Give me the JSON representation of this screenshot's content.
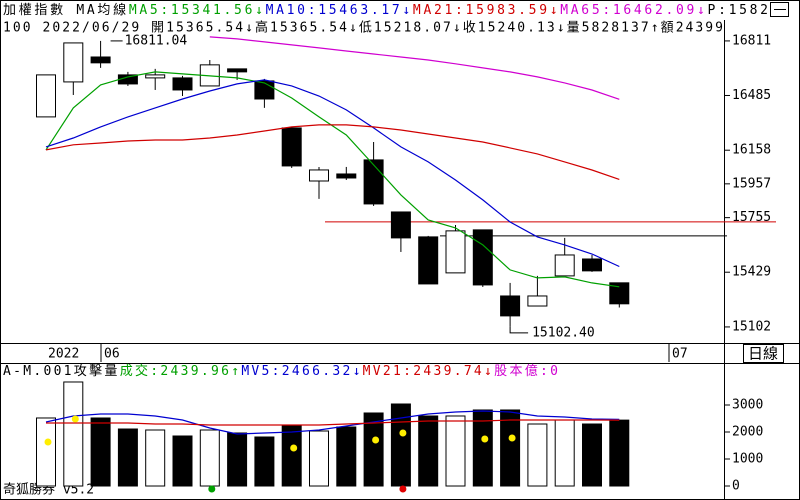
{
  "chart_data": [
    {
      "type": "candlestick",
      "title": "加權指數 MA均線",
      "p_label": "P:1582",
      "info": "100 2022/06/29 開15365.54↓高15365.54↓低15218.07↓收15240.13↓量5828137↑額24399",
      "x_labels": [
        "2022",
        "06",
        "07"
      ],
      "open": [
        16357,
        16566,
        16715,
        16608,
        16590,
        16590,
        16542,
        16644,
        16572,
        16291,
        15974,
        16016,
        16100,
        15789,
        15640,
        15425,
        15682,
        15287,
        15227,
        15407,
        15508,
        15365.54
      ],
      "high": [
        16608,
        16799,
        16811.04,
        16626,
        16644,
        16602,
        16697,
        16644,
        16584,
        16291,
        16058,
        16058,
        16207,
        15789,
        15646,
        15711,
        15682,
        15365,
        15407,
        15634,
        15532,
        15365.54
      ],
      "low": [
        16357,
        16488,
        16650,
        16542,
        16518,
        16482,
        16542,
        16578,
        16411,
        16052,
        15867,
        15980,
        15825,
        15550,
        15359,
        15425,
        15341,
        15102.4,
        15227,
        15407,
        15431,
        15218.07
      ],
      "close": [
        16608,
        16799,
        16680,
        16554,
        16608,
        16518,
        16668,
        16626,
        16464,
        16064,
        16040,
        15992,
        15837,
        15634,
        15359,
        15676,
        15353,
        15168,
        15287,
        15532,
        15437,
        15240.13
      ],
      "up_color": "#ffffff",
      "down_color": "#000000",
      "series": [
        {
          "label": "MA5:15341.56↓",
          "color": "#00a000",
          "values": [
            16160,
            16411,
            16548,
            16596,
            16626,
            16614,
            16602,
            16590,
            16560,
            16470,
            16357,
            16249,
            16070,
            15891,
            15741,
            15694,
            15592,
            15443,
            15395,
            15401,
            15365,
            15341.56
          ]
        },
        {
          "label": "MA10:15463.17↓",
          "color": "#0000d0",
          "values": [
            16178,
            16231,
            16297,
            16357,
            16411,
            16464,
            16512,
            16554,
            16578,
            16542,
            16482,
            16399,
            16291,
            16178,
            16088,
            15980,
            15861,
            15729,
            15640,
            15592,
            15538,
            15463.17
          ]
        },
        {
          "label": "MA21:15983.59↓",
          "color": "#d00000",
          "values": [
            16160,
            16190,
            16201,
            16213,
            16219,
            16219,
            16231,
            16249,
            16273,
            16297,
            16309,
            16309,
            16297,
            16279,
            16255,
            16231,
            16207,
            16172,
            16136,
            16088,
            16040,
            15983.59
          ]
        },
        {
          "label": "MA65:16462.09↓",
          "color": "#d000d0",
          "values": [
            null,
            null,
            null,
            null,
            null,
            null,
            16835,
            16823,
            16805,
            16787,
            16769,
            16751,
            16733,
            16715,
            16697,
            16674,
            16650,
            16626,
            16596,
            16560,
            16518,
            16462.09
          ]
        }
      ],
      "annotations": [
        {
          "value": 16811.04,
          "kind": "high"
        },
        {
          "value": 15102.4,
          "label": "15102.40",
          "kind": "low"
        }
      ],
      "reference_lines": [
        {
          "value": 15730,
          "color": "#d00000"
        },
        {
          "value": 15646,
          "color": "#000000"
        }
      ],
      "ylim": [
        15006,
        16936
      ],
      "yticks": [
        16811,
        16485,
        16158,
        15957,
        15755,
        15429,
        15102
      ]
    },
    {
      "type": "volume",
      "title": "A-M.001攻擊量",
      "volume_label": {
        "text": "成交:2439.96↑",
        "color": "#00a000"
      },
      "capital_label": {
        "text": "股本億:0",
        "color": "#d000d0"
      },
      "values": [
        2519,
        3852,
        2519,
        2111,
        2074,
        1852,
        2074,
        1963,
        1815,
        2259,
        2037,
        2185,
        2704,
        3037,
        2593,
        2593,
        2815,
        2815,
        2296,
        2444,
        2296,
        2439.96
      ],
      "series": [
        {
          "label": "MV5:2466.32↓",
          "color": "#0000d0",
          "values": [
            2370,
            2593,
            2667,
            2667,
            2593,
            2444,
            2148,
            1926,
            1963,
            2000,
            2074,
            2222,
            2370,
            2519,
            2667,
            2741,
            2778,
            2741,
            2593,
            2556,
            2481,
            2466.32
          ]
        },
        {
          "label": "MV21:2439.74↓",
          "color": "#d00000",
          "values": [
            2333,
            2333,
            2333,
            2333,
            2296,
            2296,
            2259,
            2259,
            2259,
            2259,
            2259,
            2296,
            2333,
            2370,
            2407,
            2407,
            2407,
            2444,
            2444,
            2444,
            2444,
            2439.74
          ]
        }
      ],
      "dots": [
        {
          "color": "#ffee00",
          "values": [
            1630,
            2481,
            null,
            null,
            null,
            null,
            null,
            null,
            null,
            1407,
            null,
            null,
            1704,
            1963,
            null,
            null,
            1741,
            1778,
            null,
            null,
            null,
            null
          ]
        },
        {
          "color": "#00a000",
          "values": [
            null,
            null,
            null,
            null,
            null,
            null,
            -111,
            null,
            null,
            null,
            null,
            null,
            null,
            null,
            null,
            null,
            null,
            null,
            null,
            null,
            null,
            null
          ]
        },
        {
          "color": "#e00000",
          "values": [
            null,
            null,
            null,
            null,
            null,
            null,
            null,
            null,
            null,
            null,
            null,
            null,
            null,
            -111,
            null,
            null,
            null,
            null,
            null,
            null,
            null,
            null
          ]
        }
      ],
      "ylim": [
        -407,
        4481
      ],
      "yticks": [
        0,
        1000,
        2000,
        3000
      ]
    }
  ],
  "app_label": "奇狐勝券 v5.2",
  "period_label": "日線"
}
